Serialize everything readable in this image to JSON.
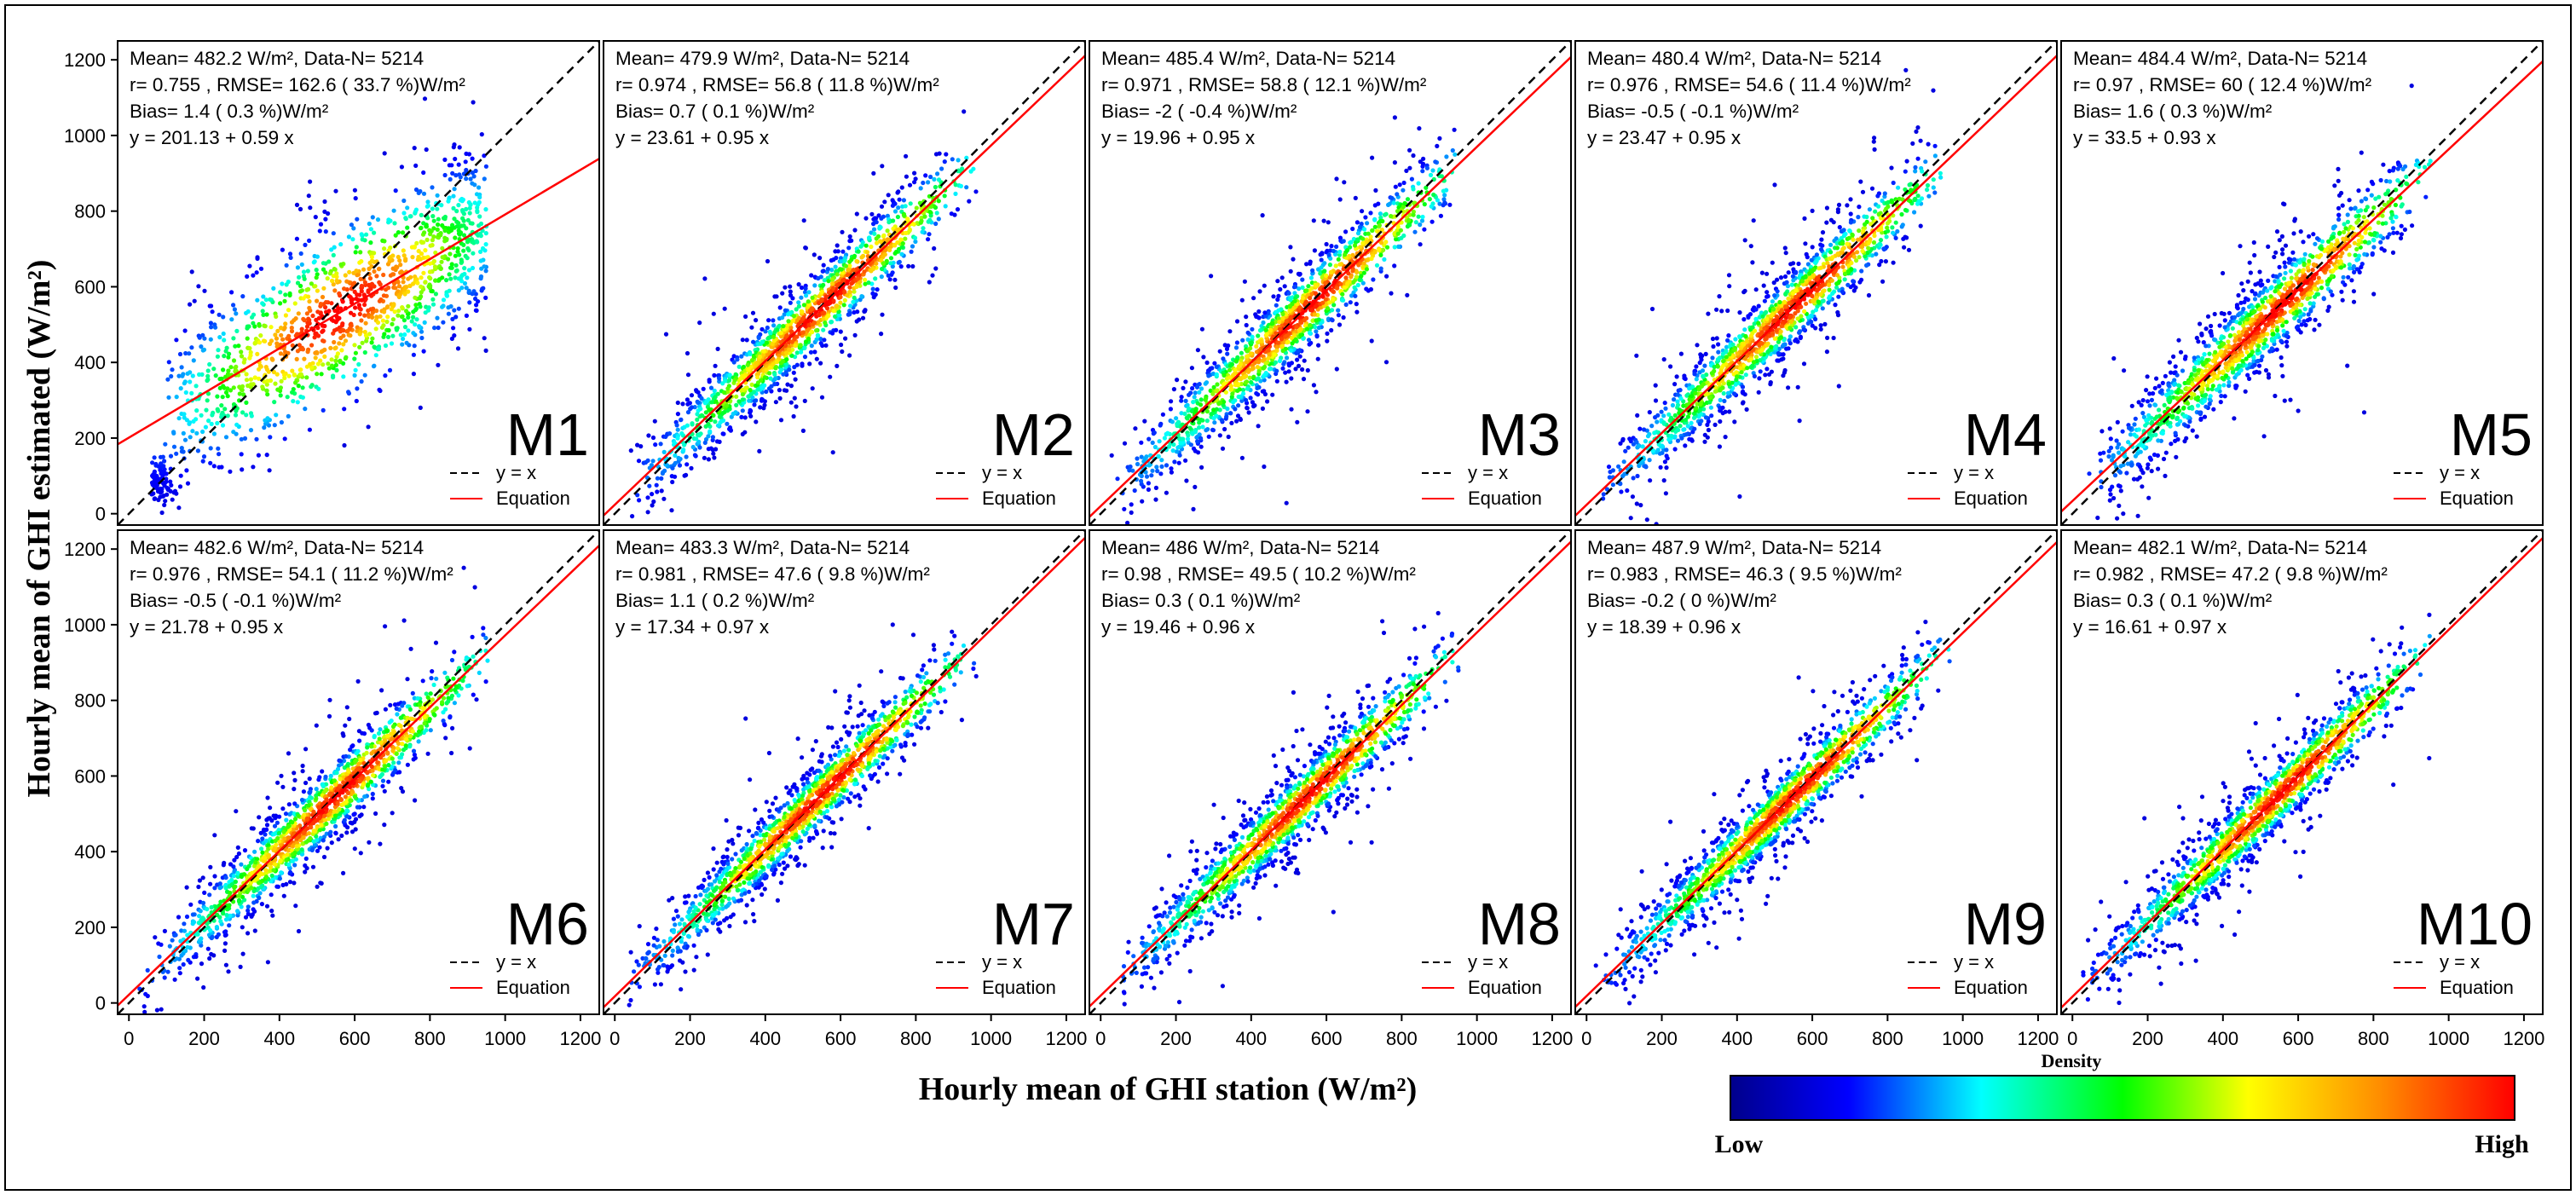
{
  "figure": {
    "x_axis_label": "Hourly mean of GHI station (W/m²)",
    "y_axis_label": "Hourly mean of GHI estimated (W/m²)",
    "colorbar": {
      "title": "Density",
      "low_label": "Low",
      "high_label": "High",
      "colors": [
        "#00008b",
        "#0000ff",
        "#00ffff",
        "#00ff00",
        "#ffff00",
        "#ff8c00",
        "#ff0000"
      ]
    },
    "legend": {
      "identity_label": "y = x",
      "fit_label": "Equation"
    },
    "colors": {
      "identity_line": "#000000",
      "fit_line": "#ff0000",
      "frame": "#000000"
    }
  },
  "chart_data": [
    {
      "type": "scatter",
      "model": "M1",
      "mean": "482.2",
      "n": "5214",
      "r": "0.755",
      "rmse": "162.6",
      "rmse_pct": "33.7",
      "bias": "1.4",
      "bias_pct": "0.3",
      "intercept": 201.13,
      "slope": 0.59,
      "intercept_text": "201.13",
      "slope_text": "0.59",
      "xlim": [
        -30,
        1250
      ],
      "ylim": [
        -30,
        1250
      ],
      "ticks": [
        0,
        200,
        400,
        600,
        800,
        1000,
        1200
      ],
      "line_text": "Mean= 482.2 W/m², Data-N= 5214",
      "stats_text": "r= 0.755 , RMSE= 162.6 ( 33.7 %)W/m²",
      "bias_text": "Bias= 1.4 ( 0.3 %)W/m²",
      "eq_text": "y = 201.13 + 0.59 x"
    },
    {
      "type": "scatter",
      "model": "M2",
      "mean": "479.9",
      "n": "5214",
      "r": "0.974",
      "rmse": "56.8",
      "rmse_pct": "11.8",
      "bias": "0.7",
      "bias_pct": "0.1",
      "intercept": 23.61,
      "slope": 0.95,
      "xlim": [
        -30,
        1250
      ],
      "ylim": [
        -30,
        1250
      ],
      "ticks": [
        0,
        200,
        400,
        600,
        800,
        1000,
        1200
      ],
      "line_text": "Mean= 479.9 W/m², Data-N= 5214",
      "stats_text": "r= 0.974 , RMSE= 56.8 ( 11.8 %)W/m²",
      "bias_text": "Bias= 0.7 ( 0.1 %)W/m²",
      "eq_text": "y = 23.61 + 0.95 x"
    },
    {
      "type": "scatter",
      "model": "M3",
      "mean": "485.4",
      "n": "5214",
      "r": "0.971",
      "rmse": "58.8",
      "rmse_pct": "12.1",
      "bias": "-2",
      "bias_pct": "-0.4",
      "intercept": 19.96,
      "slope": 0.95,
      "xlim": [
        -30,
        1250
      ],
      "ylim": [
        -30,
        1250
      ],
      "ticks": [
        0,
        200,
        400,
        600,
        800,
        1000,
        1200
      ],
      "line_text": "Mean= 485.4 W/m², Data-N= 5214",
      "stats_text": "r= 0.971 , RMSE= 58.8 ( 12.1 %)W/m²",
      "bias_text": "Bias= -2 ( -0.4 %)W/m²",
      "eq_text": "y = 19.96 + 0.95 x"
    },
    {
      "type": "scatter",
      "model": "M4",
      "mean": "480.4",
      "n": "5214",
      "r": "0.976",
      "rmse": "54.6",
      "rmse_pct": "11.4",
      "bias": "-0.5",
      "bias_pct": "-0.1",
      "intercept": 23.47,
      "slope": 0.95,
      "xlim": [
        -30,
        1250
      ],
      "ylim": [
        -30,
        1250
      ],
      "ticks": [
        0,
        200,
        400,
        600,
        800,
        1000,
        1200
      ],
      "line_text": "Mean= 480.4 W/m², Data-N= 5214",
      "stats_text": "r= 0.976 , RMSE= 54.6 ( 11.4 %)W/m²",
      "bias_text": "Bias= -0.5 ( -0.1 %)W/m²",
      "eq_text": "y = 23.47 + 0.95 x"
    },
    {
      "type": "scatter",
      "model": "M5",
      "mean": "484.4",
      "n": "5214",
      "r": "0.97",
      "rmse": "60",
      "rmse_pct": "12.4",
      "bias": "1.6",
      "bias_pct": "0.3",
      "intercept": 33.5,
      "slope": 0.93,
      "xlim": [
        -30,
        1250
      ],
      "ylim": [
        -30,
        1250
      ],
      "ticks": [
        0,
        200,
        400,
        600,
        800,
        1000,
        1200
      ],
      "line_text": "Mean= 484.4 W/m², Data-N= 5214",
      "stats_text": "r= 0.97 , RMSE= 60 ( 12.4 %)W/m²",
      "bias_text": "Bias= 1.6 ( 0.3 %)W/m²",
      "eq_text": "y = 33.5 + 0.93 x"
    },
    {
      "type": "scatter",
      "model": "M6",
      "mean": "482.6",
      "n": "5214",
      "r": "0.976",
      "rmse": "54.1",
      "rmse_pct": "11.2",
      "bias": "-0.5",
      "bias_pct": "-0.1",
      "intercept": 21.78,
      "slope": 0.95,
      "xlim": [
        -30,
        1250
      ],
      "ylim": [
        -30,
        1250
      ],
      "ticks": [
        0,
        200,
        400,
        600,
        800,
        1000,
        1200
      ],
      "line_text": "Mean= 482.6 W/m², Data-N= 5214",
      "stats_text": "r= 0.976 , RMSE= 54.1 ( 11.2 %)W/m²",
      "bias_text": "Bias= -0.5 ( -0.1 %)W/m²",
      "eq_text": "y = 21.78 + 0.95 x"
    },
    {
      "type": "scatter",
      "model": "M7",
      "mean": "483.3",
      "n": "5214",
      "r": "0.981",
      "rmse": "47.6",
      "rmse_pct": "9.8",
      "bias": "1.1",
      "bias_pct": "0.2",
      "intercept": 17.34,
      "slope": 0.97,
      "xlim": [
        -30,
        1250
      ],
      "ylim": [
        -30,
        1250
      ],
      "ticks": [
        0,
        200,
        400,
        600,
        800,
        1000,
        1200
      ],
      "line_text": "Mean= 483.3 W/m², Data-N= 5214",
      "stats_text": "r= 0.981 , RMSE= 47.6 ( 9.8 %)W/m²",
      "bias_text": "Bias= 1.1 ( 0.2 %)W/m²",
      "eq_text": "y = 17.34 + 0.97 x"
    },
    {
      "type": "scatter",
      "model": "M8",
      "mean": "486",
      "n": "5214",
      "r": "0.98",
      "rmse": "49.5",
      "rmse_pct": "10.2",
      "bias": "0.3",
      "bias_pct": "0.1",
      "intercept": 19.46,
      "slope": 0.96,
      "xlim": [
        -30,
        1250
      ],
      "ylim": [
        -30,
        1250
      ],
      "ticks": [
        0,
        200,
        400,
        600,
        800,
        1000,
        1200
      ],
      "line_text": "Mean= 486 W/m², Data-N= 5214",
      "stats_text": "r= 0.98 , RMSE= 49.5 ( 10.2 %)W/m²",
      "bias_text": "Bias= 0.3 ( 0.1 %)W/m²",
      "eq_text": "y = 19.46 + 0.96 x"
    },
    {
      "type": "scatter",
      "model": "M9",
      "mean": "487.9",
      "n": "5214",
      "r": "0.983",
      "rmse": "46.3",
      "rmse_pct": "9.5",
      "bias": "-0.2",
      "bias_pct": "0",
      "intercept": 18.39,
      "slope": 0.96,
      "xlim": [
        -30,
        1250
      ],
      "ylim": [
        -30,
        1250
      ],
      "ticks": [
        0,
        200,
        400,
        600,
        800,
        1000,
        1200
      ],
      "line_text": "Mean= 487.9 W/m², Data-N= 5214",
      "stats_text": "r= 0.983 , RMSE= 46.3 ( 9.5 %)W/m²",
      "bias_text": "Bias= -0.2 ( 0 %)W/m²",
      "eq_text": "y = 18.39 + 0.96 x"
    },
    {
      "type": "scatter",
      "model": "M10",
      "mean": "482.1",
      "n": "5214",
      "r": "0.982",
      "rmse": "47.2",
      "rmse_pct": "9.8",
      "bias": "0.3",
      "bias_pct": "0.1",
      "intercept": 16.61,
      "slope": 0.97,
      "xlim": [
        -30,
        1250
      ],
      "ylim": [
        -30,
        1250
      ],
      "ticks": [
        0,
        200,
        400,
        600,
        800,
        1000,
        1200
      ],
      "line_text": "Mean= 482.1 W/m², Data-N= 5214",
      "stats_text": "r= 0.982 , RMSE= 47.2 ( 9.8 %)W/m²",
      "bias_text": "Bias= 0.3 ( 0.1 %)W/m²",
      "eq_text": "y = 16.61 + 0.97 x"
    }
  ]
}
